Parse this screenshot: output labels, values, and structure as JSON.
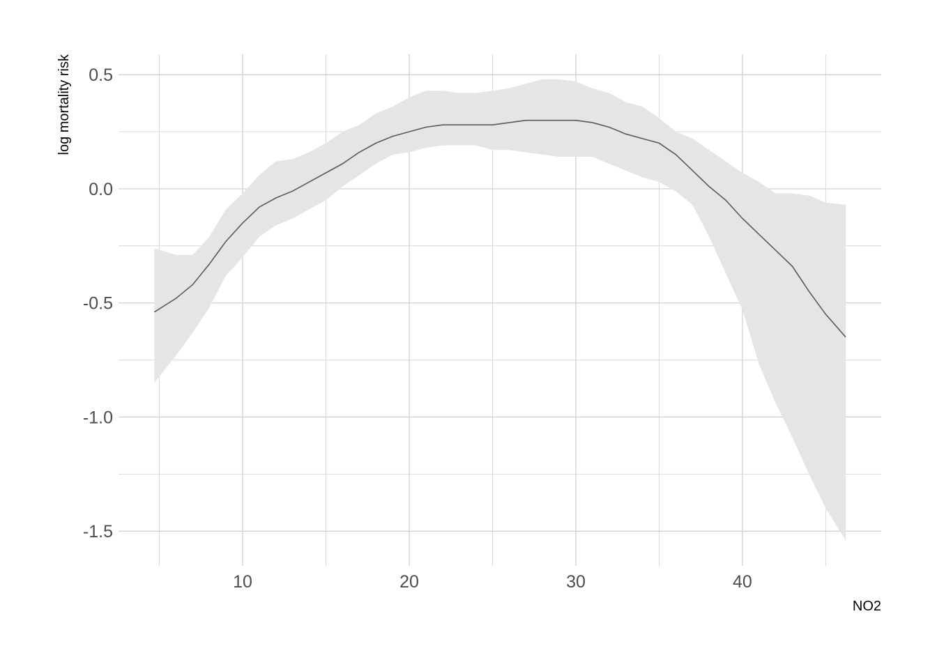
{
  "chart_data": {
    "type": "line",
    "xlabel": "NO2",
    "ylabel": "log mortality risk",
    "x": [
      4.7,
      6,
      7,
      8,
      9,
      10,
      11,
      12,
      13,
      14,
      15,
      16,
      17,
      18,
      19,
      20,
      21,
      22,
      23,
      24,
      25,
      26,
      27,
      28,
      29,
      30,
      31,
      32,
      33,
      34,
      35,
      36,
      37,
      38,
      39,
      40,
      41,
      42,
      43,
      44,
      45,
      46.2
    ],
    "series": [
      {
        "color": "#595959",
        "values": [
          -0.54,
          -0.48,
          -0.42,
          -0.33,
          -0.23,
          -0.15,
          -0.08,
          -0.04,
          -0.01,
          0.03,
          0.07,
          0.11,
          0.16,
          0.2,
          0.23,
          0.25,
          0.27,
          0.28,
          0.28,
          0.28,
          0.28,
          0.29,
          0.3,
          0.3,
          0.3,
          0.3,
          0.29,
          0.27,
          0.24,
          0.22,
          0.2,
          0.15,
          0.08,
          0.01,
          -0.05,
          -0.13,
          -0.2,
          -0.27,
          -0.34,
          -0.45,
          -0.55,
          -0.65
        ]
      }
    ],
    "ribbon": {
      "color": "#e5e5e5",
      "upper": [
        -0.26,
        -0.29,
        -0.29,
        -0.21,
        -0.09,
        -0.02,
        0.06,
        0.12,
        0.13,
        0.16,
        0.2,
        0.25,
        0.28,
        0.33,
        0.36,
        0.4,
        0.43,
        0.43,
        0.42,
        0.42,
        0.43,
        0.44,
        0.46,
        0.48,
        0.48,
        0.47,
        0.44,
        0.42,
        0.38,
        0.36,
        0.31,
        0.25,
        0.22,
        0.17,
        0.12,
        0.07,
        0.03,
        -0.02,
        -0.02,
        -0.03,
        -0.06,
        -0.07
      ],
      "lower": [
        -0.85,
        -0.73,
        -0.63,
        -0.52,
        -0.38,
        -0.3,
        -0.21,
        -0.16,
        -0.13,
        -0.09,
        -0.05,
        0.01,
        0.06,
        0.11,
        0.15,
        0.16,
        0.18,
        0.19,
        0.19,
        0.19,
        0.17,
        0.17,
        0.16,
        0.15,
        0.14,
        0.14,
        0.14,
        0.11,
        0.08,
        0.05,
        0.03,
        -0.01,
        -0.07,
        -0.21,
        -0.37,
        -0.53,
        -0.77,
        -0.94,
        -1.09,
        -1.25,
        -1.4,
        -1.54
      ]
    },
    "xlim": [
      2.55,
      48.33
    ],
    "ylim": [
      -1.652,
      0.589
    ],
    "xticks": [
      10,
      20,
      30,
      40
    ],
    "yticks": [
      -1.5,
      {
        "value": -1,
        "label": "-1.0"
      },
      -0.5,
      {
        "value": 0,
        "label": "0.0"
      },
      0.5
    ],
    "x_minor_ticks": [
      5,
      15,
      25,
      35,
      45
    ],
    "y_minor_ticks": [
      -1.25,
      -0.75,
      -0.25,
      0.25
    ],
    "grid": true
  }
}
